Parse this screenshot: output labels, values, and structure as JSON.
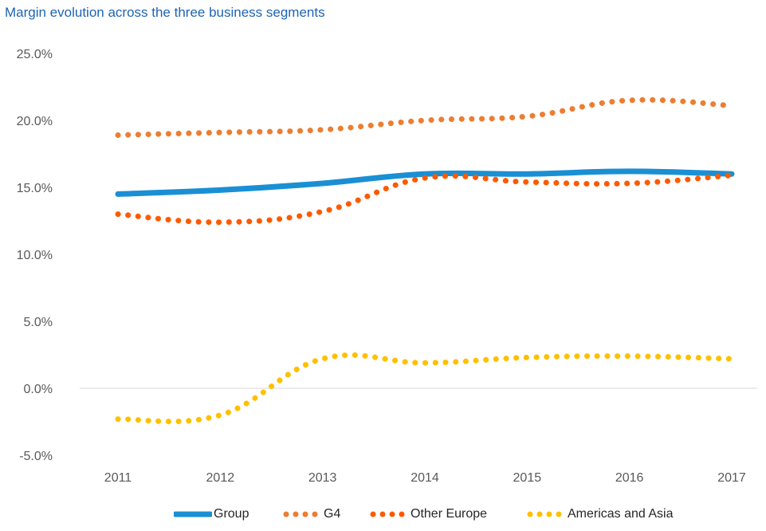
{
  "chart_data": {
    "type": "line",
    "title": "Margin evolution across the three business segments",
    "x": [
      "2011",
      "2012",
      "2013",
      "2014",
      "2015",
      "2016",
      "2017"
    ],
    "ylim": [
      -5,
      25
    ],
    "y_ticks": [
      "25.0%",
      "20.0%",
      "15.0%",
      "10.0%",
      "5.0%",
      "0.0%",
      "-5.0%"
    ],
    "y_tick_values": [
      25,
      20,
      15,
      10,
      5,
      0,
      -5
    ],
    "grid": false,
    "zero_line": true,
    "legend_position": "bottom",
    "series": [
      {
        "name": "Group",
        "style": "solid",
        "color": "#1a8fd4",
        "values": [
          14.5,
          14.8,
          15.3,
          16.0,
          16.0,
          16.2,
          16.0
        ]
      },
      {
        "name": "G4",
        "style": "dotted",
        "color": "#ed7d31",
        "values": [
          18.9,
          19.1,
          19.3,
          20.0,
          20.3,
          21.5,
          21.1
        ]
      },
      {
        "name": "Other Europe",
        "style": "dotted",
        "color": "#ff5a00",
        "values": [
          13.0,
          12.4,
          13.2,
          15.7,
          15.4,
          15.3,
          15.9
        ]
      },
      {
        "name": "Americas and Asia",
        "style": "dotted",
        "color": "#ffc000",
        "values": [
          -2.3,
          -2.0,
          2.2,
          1.9,
          2.3,
          2.4,
          2.2
        ]
      }
    ]
  }
}
